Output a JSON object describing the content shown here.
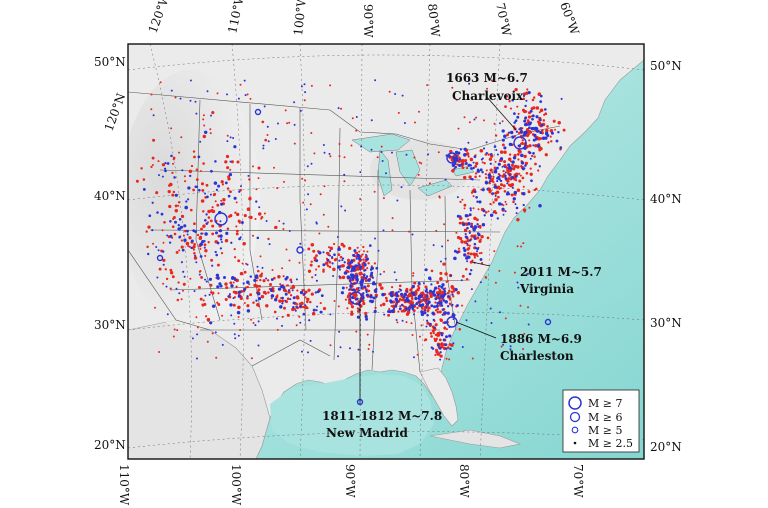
{
  "map": {
    "projection_note": "",
    "top_labels": [
      "120°W",
      "110°W",
      "100°W",
      "90°W",
      "80°W",
      "70°W",
      "60°W"
    ],
    "bottom_labels": [
      "110°W",
      "100°W",
      "90°W",
      "80°W",
      "70°W"
    ],
    "left_labels": [
      "50°N",
      "120°N",
      "40°N",
      "30°N",
      "20°N"
    ],
    "right_labels": [
      "50°N",
      "40°N",
      "30°N",
      "20°N"
    ],
    "annotations": [
      {
        "id": "charlevoix",
        "line1": "1663 M~6.7",
        "line2": "Charlevoix"
      },
      {
        "id": "virginia",
        "line1": "2011 M~5.7",
        "line2": "Virginia"
      },
      {
        "id": "charleston",
        "line1": "1886 M~6.9",
        "line2": "Charleston"
      },
      {
        "id": "new-madrid",
        "line1": "1811-1812 M~7.8",
        "line2": "New Madrid"
      }
    ],
    "legend": [
      {
        "label": "M ≥ 7",
        "size": "largest"
      },
      {
        "label": "M ≥ 6",
        "size": "large"
      },
      {
        "label": "M ≥ 5",
        "size": "medium"
      },
      {
        "label": "M ≥ 2.5",
        "size": "small"
      }
    ],
    "colors": {
      "ocean": "#aee7e3",
      "ocean_deep": "#7fd3cf",
      "land": "#e9e9e9",
      "relief": "#c8c8c8",
      "border": "#444444",
      "event_red": "#e8281e",
      "event_blue": "#2b35d6"
    }
  }
}
